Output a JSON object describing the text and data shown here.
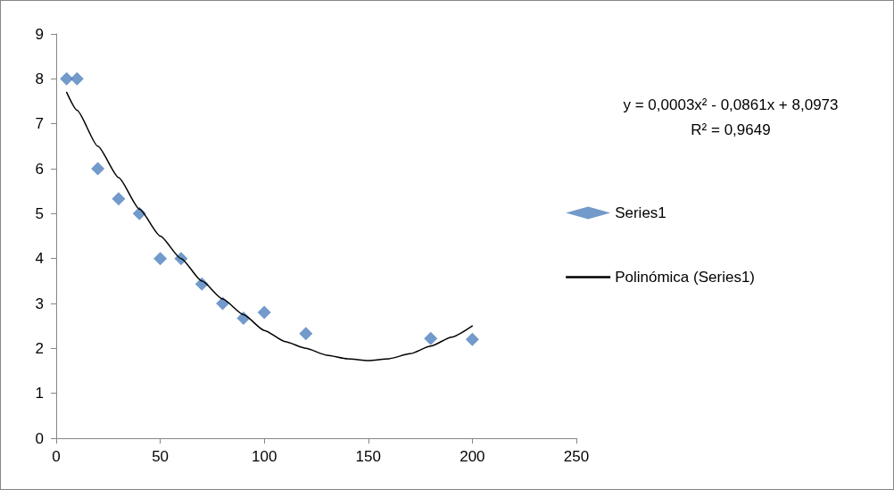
{
  "chart_data": {
    "type": "scatter",
    "xlim": [
      0,
      250
    ],
    "xticks": [
      0,
      50,
      100,
      150,
      200,
      250
    ],
    "ylim": [
      0,
      9
    ],
    "yticks": [
      0,
      1,
      2,
      3,
      4,
      5,
      6,
      7,
      8,
      9
    ],
    "grid": false,
    "legend": "right",
    "line_style": "solid",
    "annotations": [
      "y = 0,0003x² - 0,0861x + 8,0973",
      "R² = 0,9649"
    ],
    "series": [
      {
        "name": "Series1",
        "color": "#4f81bd",
        "marker": "diamond",
        "x": [
          5,
          10,
          20,
          30,
          40,
          50,
          60,
          70,
          80,
          90,
          100,
          120,
          180,
          200
        ],
        "values": [
          8,
          8,
          6,
          5.33,
          5,
          4,
          4,
          3.43,
          3,
          2.67,
          2.8,
          2.33,
          2.22,
          2.2
        ]
      },
      {
        "name": "Polinómica (Series1)",
        "type": "line",
        "color": "#000000",
        "marker": "none",
        "x": [
          5,
          10,
          20,
          30,
          40,
          50,
          60,
          70,
          80,
          90,
          100,
          110,
          120,
          130,
          140,
          150,
          160,
          170,
          180,
          190,
          200
        ],
        "values": [
          7.7,
          7.3,
          6.5,
          5.8,
          5.1,
          4.5,
          4.0,
          3.5,
          3.1,
          2.75,
          2.4,
          2.15,
          2.0,
          1.85,
          1.77,
          1.73,
          1.77,
          1.88,
          2.05,
          2.25,
          2.5
        ]
      }
    ]
  }
}
